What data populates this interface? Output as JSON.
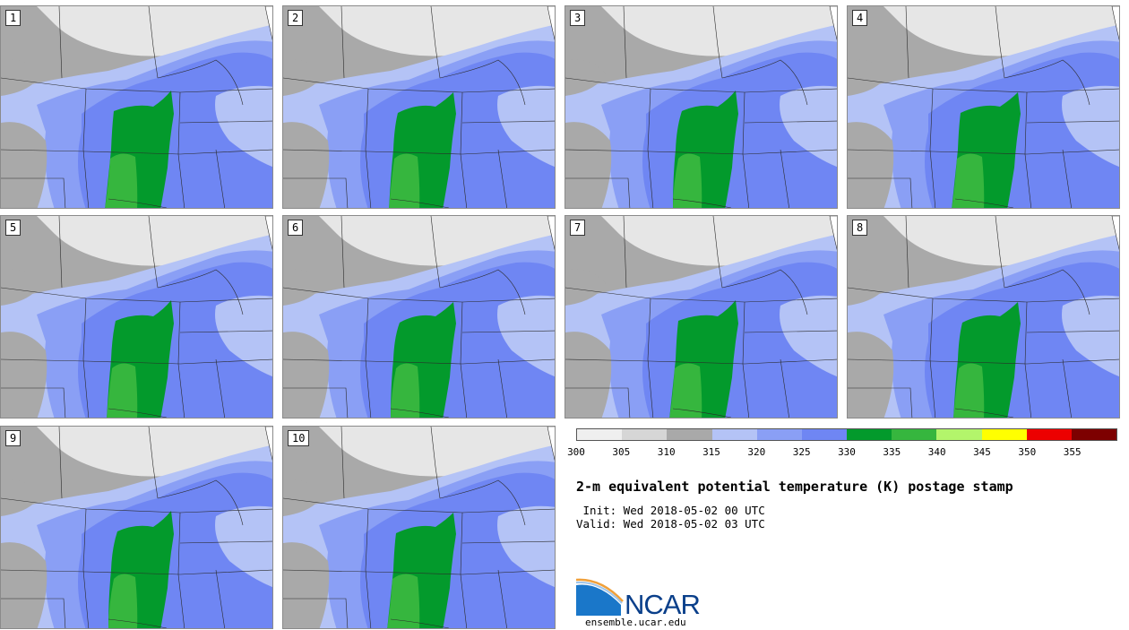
{
  "panels": [
    {
      "label": "1"
    },
    {
      "label": "2"
    },
    {
      "label": "3"
    },
    {
      "label": "4"
    },
    {
      "label": "5"
    },
    {
      "label": "6"
    },
    {
      "label": "7"
    },
    {
      "label": "8"
    },
    {
      "label": "9"
    },
    {
      "label": "10"
    }
  ],
  "colorbar": {
    "colors": [
      "#efefef",
      "#d6d6d6",
      "#a9a9a9",
      "#b4c3f6",
      "#8a9ff5",
      "#6f86f3",
      "#039a2c",
      "#36b63e",
      "#b3f56b",
      "#ffff00",
      "#ec0000",
      "#7d0000"
    ],
    "ticks": [
      "300",
      "305",
      "310",
      "315",
      "320",
      "325",
      "330",
      "335",
      "340",
      "345",
      "350",
      "355"
    ]
  },
  "title": "2-m equivalent potential temperature (K) postage stamp",
  "init_line": " Init: Wed 2018-05-02 00 UTC",
  "valid_line": "Valid: Wed 2018-05-02 03 UTC",
  "logo": {
    "text": "NCAR",
    "url": "ensemble.ucar.edu"
  },
  "map_colors": {
    "light_gray": "#e6e6e6",
    "gray": "#a9a9a9",
    "light_blue": "#b4c3f6",
    "mid_blue": "#8a9ff5",
    "blue": "#6f86f3",
    "green": "#039a2c",
    "light_green": "#36b63e"
  }
}
